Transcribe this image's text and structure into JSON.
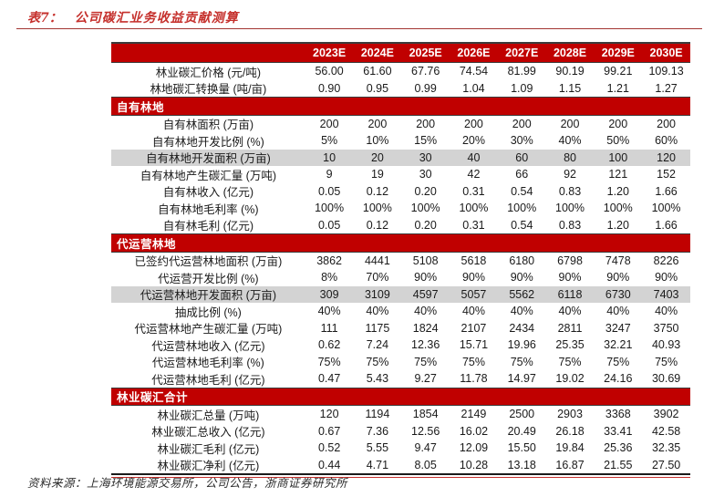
{
  "title": {
    "prefix": "表7：",
    "text": "公司碳汇业务收益贡献测算"
  },
  "colors": {
    "band_red": "#c00000",
    "title_red": "#c5302c",
    "highlight_gray": "#d3d3d3",
    "border_dark": "#3c3c3c",
    "text": "#1a1a1a"
  },
  "footer": {
    "text": "资料来源：上海环境能源交易所，公司公告，浙商证券研究所"
  },
  "table": {
    "columns": [
      "2023E",
      "2024E",
      "2025E",
      "2026E",
      "2027E",
      "2028E",
      "2029E",
      "2030E"
    ],
    "rows": [
      {
        "type": "data",
        "label": "林业碳汇价格 (元/吨)",
        "highlight": false,
        "values": [
          "56.00",
          "61.60",
          "67.76",
          "74.54",
          "81.99",
          "90.19",
          "99.21",
          "109.13"
        ]
      },
      {
        "type": "data",
        "label": "林地碳汇转换量 (吨/亩)",
        "highlight": false,
        "values": [
          "0.90",
          "0.95",
          "0.99",
          "1.04",
          "1.09",
          "1.15",
          "1.21",
          "1.27"
        ]
      },
      {
        "type": "section",
        "label": "自有林地"
      },
      {
        "type": "data",
        "label": "自有林面积 (万亩)",
        "highlight": false,
        "values": [
          "200",
          "200",
          "200",
          "200",
          "200",
          "200",
          "200",
          "200"
        ]
      },
      {
        "type": "data",
        "label": "自有林地开发比例 (%)",
        "highlight": false,
        "values": [
          "5%",
          "10%",
          "15%",
          "20%",
          "30%",
          "40%",
          "50%",
          "60%"
        ]
      },
      {
        "type": "data",
        "label": "自有林地开发面积 (万亩)",
        "highlight": true,
        "values": [
          "10",
          "20",
          "30",
          "40",
          "60",
          "80",
          "100",
          "120"
        ]
      },
      {
        "type": "data",
        "label": "自有林地产生碳汇量 (万吨)",
        "highlight": false,
        "values": [
          "9",
          "19",
          "30",
          "42",
          "66",
          "92",
          "121",
          "152"
        ]
      },
      {
        "type": "data",
        "label": "自有林收入 (亿元)",
        "highlight": false,
        "values": [
          "0.05",
          "0.12",
          "0.20",
          "0.31",
          "0.54",
          "0.83",
          "1.20",
          "1.66"
        ]
      },
      {
        "type": "data",
        "label": "自有林地毛利率 (%)",
        "highlight": false,
        "values": [
          "100%",
          "100%",
          "100%",
          "100%",
          "100%",
          "100%",
          "100%",
          "100%"
        ]
      },
      {
        "type": "data",
        "label": "自有林毛利 (亿元)",
        "highlight": false,
        "values": [
          "0.05",
          "0.12",
          "0.20",
          "0.31",
          "0.54",
          "0.83",
          "1.20",
          "1.66"
        ]
      },
      {
        "type": "section",
        "label": "代运营林地"
      },
      {
        "type": "data",
        "label": "已签约代运营林地面积 (万亩)",
        "highlight": false,
        "values": [
          "3862",
          "4441",
          "5108",
          "5618",
          "6180",
          "6798",
          "7478",
          "8226"
        ]
      },
      {
        "type": "data",
        "label": "代运营开发比例 (%)",
        "highlight": false,
        "values": [
          "8%",
          "70%",
          "90%",
          "90%",
          "90%",
          "90%",
          "90%",
          "90%"
        ]
      },
      {
        "type": "data",
        "label": "代运营林地开发面积 (万亩)",
        "highlight": true,
        "values": [
          "309",
          "3109",
          "4597",
          "5057",
          "5562",
          "6118",
          "6730",
          "7403"
        ]
      },
      {
        "type": "data",
        "label": "抽成比例 (%)",
        "highlight": false,
        "values": [
          "40%",
          "40%",
          "40%",
          "40%",
          "40%",
          "40%",
          "40%",
          "40%"
        ]
      },
      {
        "type": "data",
        "label": "代运营林地产生碳汇量 (万吨)",
        "highlight": false,
        "values": [
          "111",
          "1175",
          "1824",
          "2107",
          "2434",
          "2811",
          "3247",
          "3750"
        ]
      },
      {
        "type": "data",
        "label": "代运营林地收入 (亿元)",
        "highlight": false,
        "values": [
          "0.62",
          "7.24",
          "12.36",
          "15.71",
          "19.96",
          "25.35",
          "32.21",
          "40.93"
        ]
      },
      {
        "type": "data",
        "label": "代运营林地毛利率 (%)",
        "highlight": false,
        "values": [
          "75%",
          "75%",
          "75%",
          "75%",
          "75%",
          "75%",
          "75%",
          "75%"
        ]
      },
      {
        "type": "data",
        "label": "代运营林地毛利 (亿元)",
        "highlight": false,
        "values": [
          "0.47",
          "5.43",
          "9.27",
          "11.78",
          "14.97",
          "19.02",
          "24.16",
          "30.69"
        ]
      },
      {
        "type": "section",
        "label": "林业碳汇合计"
      },
      {
        "type": "data",
        "label": "林业碳汇总量 (万吨)",
        "highlight": false,
        "values": [
          "120",
          "1194",
          "1854",
          "2149",
          "2500",
          "2903",
          "3368",
          "3902"
        ]
      },
      {
        "type": "data",
        "label": "林业碳汇总收入 (亿元)",
        "highlight": false,
        "values": [
          "0.67",
          "7.36",
          "12.56",
          "16.02",
          "20.49",
          "26.18",
          "33.41",
          "42.58"
        ]
      },
      {
        "type": "data",
        "label": "林业碳汇毛利 (亿元)",
        "highlight": false,
        "values": [
          "0.52",
          "5.55",
          "9.47",
          "12.09",
          "15.50",
          "19.84",
          "25.36",
          "32.35"
        ]
      },
      {
        "type": "data",
        "label": "林业碳汇净利 (亿元)",
        "highlight": false,
        "values": [
          "0.44",
          "4.71",
          "8.05",
          "10.28",
          "13.18",
          "16.87",
          "21.55",
          "27.50"
        ]
      }
    ]
  }
}
